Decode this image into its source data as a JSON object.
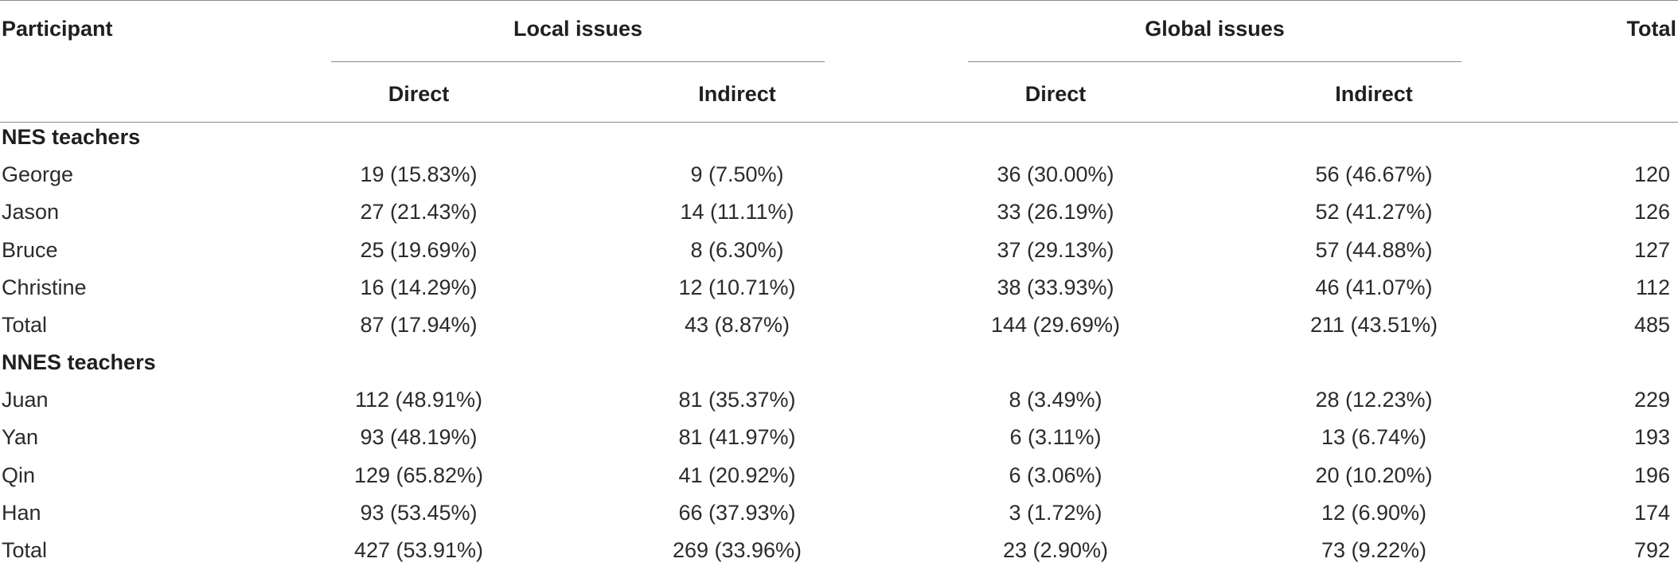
{
  "header": {
    "participant": "Participant",
    "local_issues": "Local issues",
    "global_issues": "Global issues",
    "total": "Total",
    "direct": "Direct",
    "indirect": "Indirect"
  },
  "groups": [
    {
      "title": "NES teachers",
      "rows": [
        {
          "name": "George",
          "local_direct": "19 (15.83%)",
          "local_indirect": "9 (7.50%)",
          "global_direct": "36 (30.00%)",
          "global_indirect": "56 (46.67%)",
          "total": "120"
        },
        {
          "name": "Jason",
          "local_direct": "27 (21.43%)",
          "local_indirect": "14 (11.11%)",
          "global_direct": "33 (26.19%)",
          "global_indirect": "52 (41.27%)",
          "total": "126"
        },
        {
          "name": "Bruce",
          "local_direct": "25 (19.69%)",
          "local_indirect": "8 (6.30%)",
          "global_direct": "37 (29.13%)",
          "global_indirect": "57 (44.88%)",
          "total": "127"
        },
        {
          "name": "Christine",
          "local_direct": "16 (14.29%)",
          "local_indirect": "12 (10.71%)",
          "global_direct": "38 (33.93%)",
          "global_indirect": "46 (41.07%)",
          "total": "112"
        },
        {
          "name": "Total",
          "local_direct": "87 (17.94%)",
          "local_indirect": "43 (8.87%)",
          "global_direct": "144 (29.69%)",
          "global_indirect": "211 (43.51%)",
          "total": "485"
        }
      ]
    },
    {
      "title": "NNES teachers",
      "rows": [
        {
          "name": "Juan",
          "local_direct": "112 (48.91%)",
          "local_indirect": "81 (35.37%)",
          "global_direct": "8 (3.49%)",
          "global_indirect": "28 (12.23%)",
          "total": "229"
        },
        {
          "name": "Yan",
          "local_direct": "93 (48.19%)",
          "local_indirect": "81 (41.97%)",
          "global_direct": "6 (3.11%)",
          "global_indirect": "13 (6.74%)",
          "total": "193"
        },
        {
          "name": "Qin",
          "local_direct": "129 (65.82%)",
          "local_indirect": "41 (20.92%)",
          "global_direct": "6 (3.06%)",
          "global_indirect": "20 (10.20%)",
          "total": "196"
        },
        {
          "name": "Han",
          "local_direct": "93 (53.45%)",
          "local_indirect": "66 (37.93%)",
          "global_direct": "3 (1.72%)",
          "global_indirect": "12 (6.90%)",
          "total": "174"
        },
        {
          "name": "Total",
          "local_direct": "427 (53.91%)",
          "local_indirect": "269 (33.96%)",
          "global_direct": "23 (2.90%)",
          "global_indirect": "73 (9.22%)",
          "total": "792"
        }
      ]
    }
  ]
}
